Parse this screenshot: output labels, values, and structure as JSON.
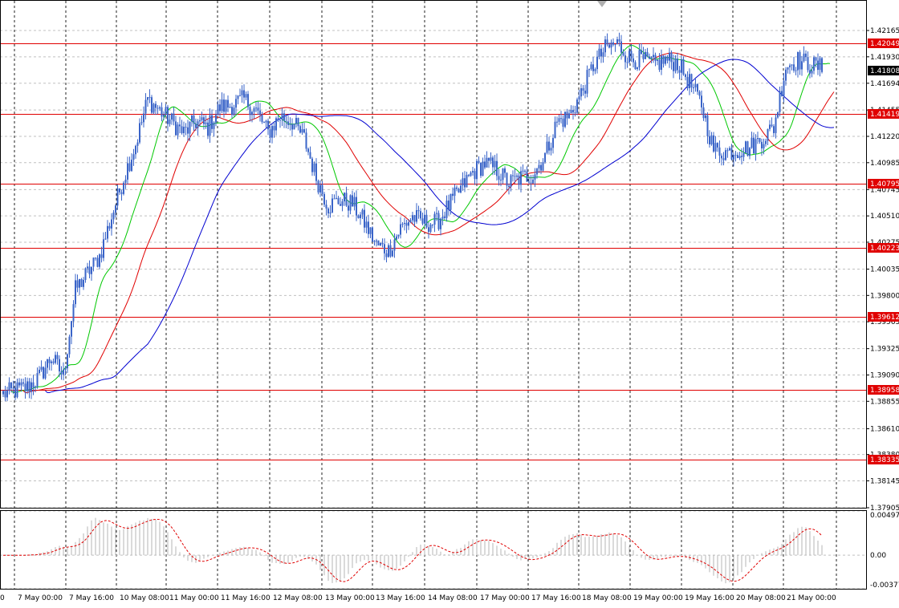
{
  "chart_data": [
    {
      "type": "candlestick",
      "title": "",
      "xlabel": "",
      "ylabel": "",
      "ylim": [
        1.379,
        1.4235
      ],
      "grid": true,
      "y_ticks": [
        "1.42165",
        "1.41930",
        "1.41694",
        "1.41455",
        "1.41220",
        "1.40985",
        "1.40745",
        "1.40510",
        "1.40275",
        "1.40035",
        "1.39800",
        "1.39565",
        "1.39325",
        "1.39090",
        "1.38855",
        "1.38610",
        "1.38380",
        "1.38145",
        "1.37905"
      ],
      "x_ticks": [
        "0",
        "7 May 00:00",
        "7 May 16:00",
        "10 May 08:00",
        "11 May 00:00",
        "11 May 16:00",
        "12 May 08:00",
        "13 May 00:00",
        "13 May 16:00",
        "14 May 08:00",
        "17 May 00:00",
        "17 May 16:00",
        "18 May 08:00",
        "19 May 00:00",
        "19 May 16:00",
        "20 May 08:00",
        "21 May 00:00"
      ],
      "levels": [
        "1.42049",
        "1.41419",
        "1.40795",
        "1.40223",
        "1.39612",
        "1.38958",
        "1.38335"
      ],
      "current_price": "1.41808",
      "close_path": [
        [
          0,
          1.3892
        ],
        [
          6,
          1.3895
        ],
        [
          12,
          1.3898
        ],
        [
          18,
          1.3907
        ],
        [
          24,
          1.3925
        ],
        [
          30,
          1.3908
        ],
        [
          36,
          1.3985
        ],
        [
          42,
          1.4
        ],
        [
          48,
          1.4015
        ],
        [
          54,
          1.405
        ],
        [
          60,
          1.4085
        ],
        [
          66,
          1.4115
        ],
        [
          72,
          1.4155
        ],
        [
          78,
          1.4145
        ],
        [
          84,
          1.4135
        ],
        [
          90,
          1.4125
        ],
        [
          96,
          1.4135
        ],
        [
          102,
          1.413
        ],
        [
          108,
          1.4148
        ],
        [
          114,
          1.415
        ],
        [
          120,
          1.4155
        ],
        [
          126,
          1.4145
        ],
        [
          132,
          1.4125
        ],
        [
          138,
          1.414
        ],
        [
          144,
          1.4135
        ],
        [
          150,
          1.412
        ],
        [
          156,
          1.4085
        ],
        [
          162,
          1.406
        ],
        [
          168,
          1.4065
        ],
        [
          174,
          1.4062
        ],
        [
          180,
          1.4045
        ],
        [
          186,
          1.4025
        ],
        [
          192,
          1.402
        ],
        [
          198,
          1.404
        ],
        [
          204,
          1.405
        ],
        [
          210,
          1.4045
        ],
        [
          216,
          1.4045
        ],
        [
          222,
          1.406
        ],
        [
          228,
          1.4075
        ],
        [
          234,
          1.409
        ],
        [
          240,
          1.4098
        ],
        [
          246,
          1.4092
        ],
        [
          252,
          1.408
        ],
        [
          258,
          1.4085
        ],
        [
          264,
          1.4088
        ],
        [
          270,
          1.4105
        ],
        [
          276,
          1.4135
        ],
        [
          282,
          1.414
        ],
        [
          288,
          1.416
        ],
        [
          294,
          1.4185
        ],
        [
          300,
          1.42
        ],
        [
          306,
          1.4205
        ],
        [
          312,
          1.4192
        ],
        [
          318,
          1.419
        ],
        [
          324,
          1.4186
        ],
        [
          330,
          1.419
        ],
        [
          336,
          1.4188
        ],
        [
          342,
          1.417
        ],
        [
          348,
          1.415
        ],
        [
          354,
          1.411
        ],
        [
          360,
          1.4108
        ],
        [
          366,
          1.411
        ],
        [
          372,
          1.4112
        ],
        [
          378,
          1.412
        ],
        [
          384,
          1.413
        ],
        [
          390,
          1.4185
        ],
        [
          396,
          1.419
        ],
        [
          402,
          1.4186
        ],
        [
          408,
          1.4183
        ]
      ],
      "series": [
        {
          "name": "",
          "color": "#00c800",
          "period": 5
        },
        {
          "name": "",
          "color": "#e00000",
          "period": 13
        },
        {
          "name": "",
          "color": "#0000d0",
          "period": 26
        }
      ]
    },
    {
      "type": "histogram",
      "title": "",
      "ylim": [
        -0.00377,
        0.00497
      ],
      "y_ticks": [
        "0.00497",
        "0.00",
        "-0.00377"
      ],
      "signal_color": "#e00000"
    }
  ],
  "colors": {
    "candle": "#3a64c8",
    "level_line": "#e00000",
    "level_label_bg": "#e00000",
    "current_label_bg": "#000000",
    "grid": "#c0c0c0",
    "histogram": "#b4b4b4"
  }
}
